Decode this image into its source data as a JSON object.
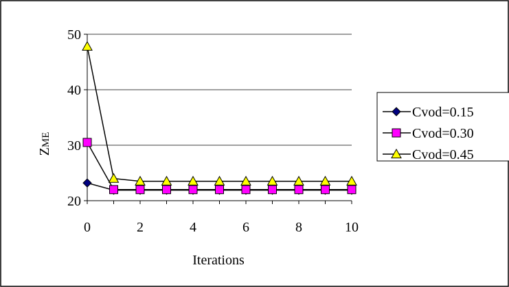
{
  "chart_data": {
    "type": "line",
    "title": "",
    "xlabel": "Iterations",
    "ylabel_main": "Z",
    "ylabel_sub": "ME",
    "x": [
      0,
      1,
      2,
      3,
      4,
      5,
      6,
      7,
      8,
      9,
      10
    ],
    "xlim": [
      0,
      10
    ],
    "ylim": [
      20,
      50
    ],
    "x_ticks": [
      "0",
      "2",
      "4",
      "6",
      "8",
      "10"
    ],
    "y_ticks": [
      "20",
      "30",
      "40",
      "50"
    ],
    "grid": "horizontal",
    "legend_position": "right",
    "series": [
      {
        "name": "Cvod=0.15",
        "marker": "diamond",
        "color": "#000080",
        "values": [
          23.2,
          21.9,
          21.9,
          21.9,
          21.9,
          21.9,
          21.9,
          21.9,
          21.9,
          21.9,
          21.9
        ]
      },
      {
        "name": "Cvod=0.30",
        "marker": "square",
        "color": "#FF00FF",
        "values": [
          30.5,
          22.0,
          22.0,
          22.0,
          22.0,
          22.0,
          22.0,
          22.0,
          22.0,
          22.0,
          22.0
        ]
      },
      {
        "name": "Cvod=0.45",
        "marker": "triangle",
        "color": "#FFFF00",
        "values": [
          47.8,
          24.0,
          23.5,
          23.5,
          23.5,
          23.5,
          23.5,
          23.5,
          23.5,
          23.5,
          23.5
        ]
      }
    ]
  }
}
